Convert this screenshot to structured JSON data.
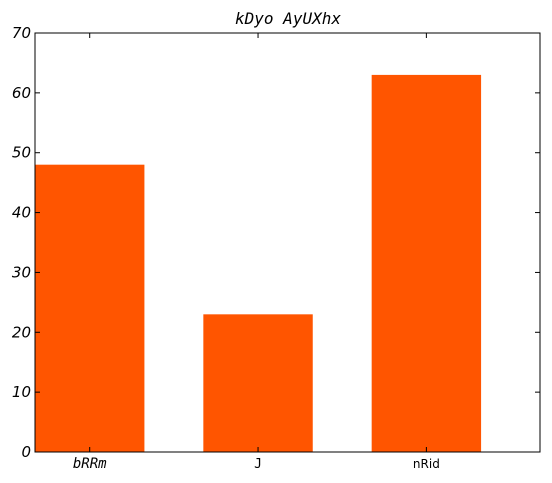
{
  "chart_data": {
    "type": "bar",
    "title": "kDyo AyUXhx",
    "categories": [
      "bRRm",
      "J",
      "nRid"
    ],
    "values": [
      48,
      23,
      63
    ],
    "bar_color": "#ff5500",
    "xlabel": "",
    "ylabel": "",
    "ylim": [
      0,
      70
    ],
    "yticks": [
      0,
      10,
      20,
      30,
      40,
      50,
      60,
      70
    ],
    "grid": false,
    "legend": "none"
  }
}
